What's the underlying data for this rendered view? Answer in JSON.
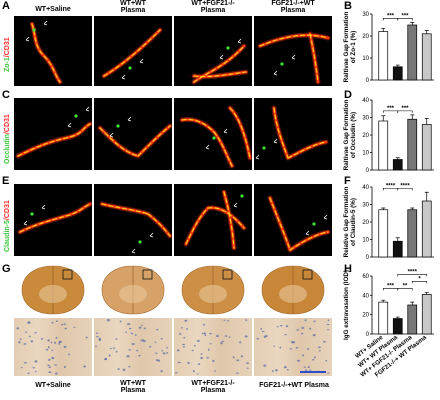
{
  "panel_letters": [
    "A",
    "B",
    "C",
    "D",
    "E",
    "F",
    "G",
    "H"
  ],
  "columns": {
    "c1": [
      "WT+Saline"
    ],
    "c2": [
      "WT+WT",
      "Plasma"
    ],
    "c3": [
      "WT+FGF21-/-",
      "Plasma"
    ],
    "c4": [
      "FGF21-/-+WT",
      "Plasma"
    ]
  },
  "rows": [
    {
      "marker": "Zo-1",
      "slash": "/",
      "cd31": "CD31"
    },
    {
      "marker": "Occludin",
      "slash": "/",
      "cd31": "CD31"
    },
    {
      "marker": "Claudin-5",
      "slash": "/",
      "cd31": "CD31"
    }
  ],
  "bottom_labels": {
    "c1": [
      "WT+Saline"
    ],
    "c2": [
      "WT+WT",
      "Plasma"
    ],
    "c3": [
      "WT+FGF21-/-",
      "Plasma"
    ],
    "c4": [
      "FGF21-/-+WT Plasma"
    ]
  },
  "chart_data": [
    {
      "panel": "B",
      "type": "bar",
      "ylabel": "Raltivae Gap Formation of Zo-1 (%)",
      "ylabel_lines": [
        "Raltivae Gap Formation",
        "of Zo-1 (%)"
      ],
      "ylim": [
        0,
        30
      ],
      "yticks": [
        0,
        10,
        20,
        30
      ],
      "categories": [
        "WT+Saline",
        "WT+WT Plasma",
        "WT+FGF21-/- Plasma",
        "FGF21-/-+WT Plasma"
      ],
      "values": [
        22,
        6,
        25,
        21
      ],
      "errors": [
        1.5,
        0.8,
        1.2,
        1.5
      ],
      "fills": [
        "#ffffff",
        "#111111",
        "#777777",
        "#c8c8c8"
      ],
      "sig": [
        {
          "from": 0,
          "to": 1,
          "label": "***",
          "level": 0
        },
        {
          "from": 1,
          "to": 2,
          "label": "***",
          "level": 0
        }
      ]
    },
    {
      "panel": "D",
      "type": "bar",
      "ylabel": "Raltivae Gap Formation of Occludin (%)",
      "ylabel_lines": [
        "Raltivae Gap Formation",
        "of Occludin (%)"
      ],
      "ylim": [
        0,
        40
      ],
      "yticks": [
        0,
        10,
        20,
        30,
        40
      ],
      "categories": [
        "WT+Saline",
        "WT+WT Plasma",
        "WT+FGF21-/- Plasma",
        "FGF21-/-+WT Plasma"
      ],
      "values": [
        28,
        6,
        29,
        26
      ],
      "errors": [
        3,
        1,
        2.5,
        3.5
      ],
      "fills": [
        "#ffffff",
        "#111111",
        "#777777",
        "#c8c8c8"
      ],
      "sig": [
        {
          "from": 0,
          "to": 1,
          "label": "***",
          "level": 0
        },
        {
          "from": 1,
          "to": 2,
          "label": "***",
          "level": 0
        }
      ]
    },
    {
      "panel": "F",
      "type": "bar",
      "ylabel": "Relative Gap Formation of Claudin-5 (%)",
      "ylabel_lines": [
        "Relative Gap Formation",
        "of Claudin-5 (%)"
      ],
      "ylim": [
        0,
        40
      ],
      "yticks": [
        0,
        10,
        20,
        30,
        40
      ],
      "categories": [
        "WT+Saline",
        "WT+WT Plasma",
        "WT+FGF21-/- Plasma",
        "FGF21-/-+WT Plasma"
      ],
      "values": [
        27,
        9,
        27,
        32
      ],
      "errors": [
        1,
        2,
        1,
        5
      ],
      "fills": [
        "#ffffff",
        "#111111",
        "#777777",
        "#c8c8c8"
      ],
      "sig": [
        {
          "from": 0,
          "to": 1,
          "label": "****",
          "level": 0
        },
        {
          "from": 1,
          "to": 2,
          "label": "****",
          "level": 0
        }
      ]
    },
    {
      "panel": "H",
      "type": "bar",
      "ylabel": "IgG extravasation (IOD)",
      "ylabel_lines": [
        "IgG extravasation (IOD)"
      ],
      "ylim": [
        0,
        60
      ],
      "yticks": [
        0,
        20,
        40,
        60
      ],
      "categories": [
        "WT+ Saline",
        "WT+ WT Plasma",
        "WT+ FGF21-/- Plasma",
        "FGF21-/-+ WT Plasma"
      ],
      "values": [
        33,
        16,
        30,
        41
      ],
      "errors": [
        2,
        1.5,
        3,
        2
      ],
      "fills": [
        "#ffffff",
        "#111111",
        "#777777",
        "#c8c8c8"
      ],
      "sig": [
        {
          "from": 0,
          "to": 1,
          "label": "***",
          "level": 0
        },
        {
          "from": 1,
          "to": 2,
          "label": "**",
          "level": 0
        },
        {
          "from": 2,
          "to": 3,
          "label": "*",
          "level": 1
        },
        {
          "from": 1,
          "to": 3,
          "label": "****",
          "level": 2
        }
      ]
    }
  ]
}
